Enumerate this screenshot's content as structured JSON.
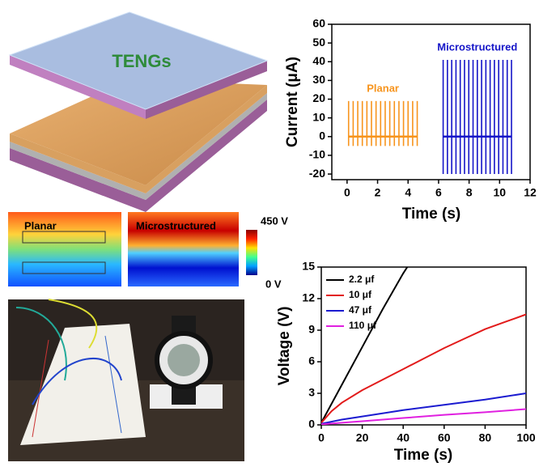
{
  "panels": {
    "device_label": "TENGs",
    "field_maps": {
      "planar": "Planar",
      "microstructured": "Microstructured"
    },
    "colorbar": {
      "max_label": "450 V",
      "min_label": "0 V"
    }
  },
  "chart_data": [
    {
      "type": "spike",
      "xlabel": "Time (s)",
      "ylabel": "Current (μA)",
      "xlim": [
        -1,
        12
      ],
      "xticks": [
        0,
        2,
        4,
        6,
        8,
        10,
        12
      ],
      "ylim": [
        -23,
        60
      ],
      "yticks": [
        -20,
        -10,
        0,
        10,
        20,
        30,
        40,
        50,
        60
      ],
      "series": [
        {
          "name": "Planar",
          "color": "#f7941d",
          "x": [
            0.1,
            0.4,
            0.7,
            1.0,
            1.3,
            1.6,
            1.9,
            2.2,
            2.5,
            2.8,
            3.1,
            3.4,
            3.7,
            4.0,
            4.3,
            4.6
          ],
          "values": [
            19,
            19,
            19,
            19,
            19,
            19,
            19,
            19,
            19,
            19,
            19,
            19,
            19,
            19,
            19,
            19
          ],
          "troughs": [
            -5,
            -5,
            -5,
            -5,
            -5,
            -5,
            -5,
            -5,
            -5,
            -5,
            -5,
            -5,
            -5,
            -5,
            -5,
            -5
          ]
        },
        {
          "name": "Microstructured",
          "color": "#1515c8",
          "x": [
            6.3,
            6.58,
            6.86,
            7.14,
            7.42,
            7.7,
            7.98,
            8.26,
            8.54,
            8.82,
            9.1,
            9.38,
            9.66,
            9.94,
            10.22,
            10.5,
            10.78
          ],
          "values": [
            41,
            41,
            41,
            41,
            41,
            41,
            41,
            41,
            41,
            41,
            41,
            41,
            41,
            41,
            41,
            41,
            41
          ],
          "troughs": [
            -20,
            -20,
            -20,
            -20,
            -20,
            -20,
            -20,
            -20,
            -20,
            -20,
            -20,
            -20,
            -20,
            -20,
            -20,
            -20,
            -20
          ]
        }
      ]
    },
    {
      "type": "line",
      "xlabel": "Time (s)",
      "ylabel": "Voltage (V)",
      "xlim": [
        0,
        100
      ],
      "xticks": [
        0,
        20,
        40,
        60,
        80,
        100
      ],
      "ylim": [
        0,
        15
      ],
      "yticks": [
        0,
        3,
        6,
        9,
        12,
        15
      ],
      "legend": "upper left",
      "series": [
        {
          "name": "2.2 μf",
          "color": "#000000",
          "x": [
            0,
            10,
            20,
            30,
            40,
            42
          ],
          "values": [
            0.2,
            3.8,
            7.4,
            11,
            14.4,
            15
          ]
        },
        {
          "name": "10 μf",
          "color": "#e21b1b",
          "x": [
            0,
            5,
            10,
            20,
            30,
            40,
            50,
            60,
            70,
            80,
            90,
            100
          ],
          "values": [
            0.2,
            1.3,
            2.1,
            3.3,
            4.3,
            5.3,
            6.3,
            7.3,
            8.2,
            9.1,
            9.8,
            10.5
          ]
        },
        {
          "name": "47 μf",
          "color": "#1b1bd0",
          "x": [
            0,
            10,
            20,
            40,
            60,
            80,
            100
          ],
          "values": [
            0.1,
            0.5,
            0.8,
            1.4,
            1.9,
            2.4,
            3.0
          ]
        },
        {
          "name": "110 μf",
          "color": "#e020e0",
          "x": [
            0,
            10,
            20,
            40,
            60,
            80,
            100
          ],
          "values": [
            0.05,
            0.2,
            0.35,
            0.65,
            0.95,
            1.2,
            1.5
          ]
        }
      ]
    }
  ]
}
